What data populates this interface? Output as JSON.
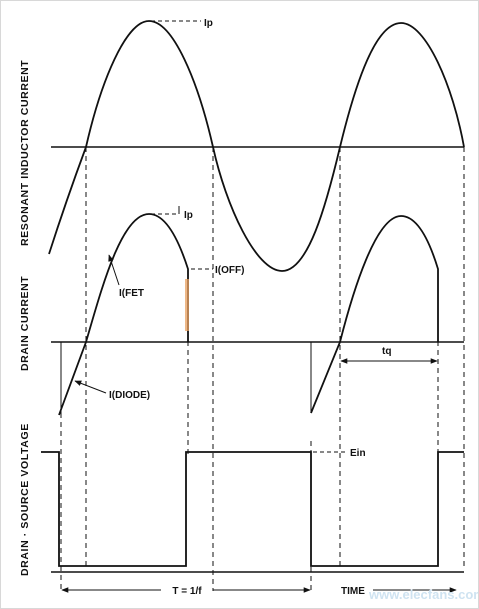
{
  "axis_labels": {
    "resonant": "RESONANT INDUCTOR CURRENT",
    "drain_current": "DRAIN CURRENT",
    "drain_source": "DRAIN · SOURCE VOLTAGE"
  },
  "annotations": {
    "ip_top": "Ip",
    "ip_mid": "Ip",
    "ifet": "I(FET",
    "ioff": "I(OFF)",
    "idiode": "I(DIODE)",
    "tq": "tq",
    "ein": "Ein",
    "period": "T = 1/f",
    "time": "TIME"
  },
  "watermark": "www.elecfans.com",
  "colors": {
    "line": "#111111",
    "highlight": "#e8a060",
    "watermark": "#cfe3f1"
  }
}
